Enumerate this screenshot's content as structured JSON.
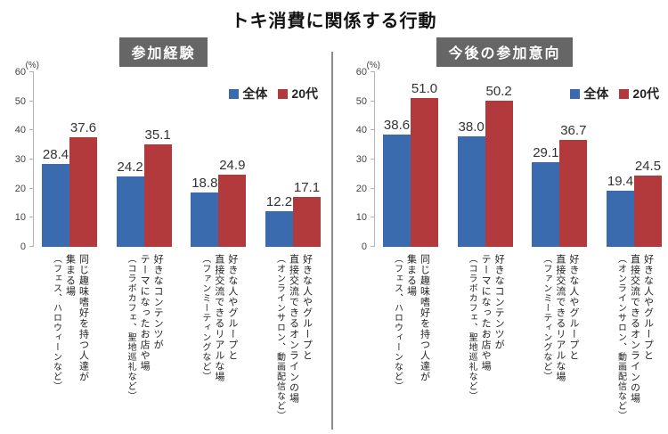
{
  "title": "トキ消費に関係する行動",
  "colors": {
    "series_colors": [
      "#3A6BAE",
      "#B33A3C"
    ],
    "header_bg": "#666666",
    "divider": "#8C8C8C",
    "axis": "#B3B3B3",
    "value_text": "#333333"
  },
  "chart_data": [
    {
      "type": "bar",
      "title": "参加経験",
      "ylabel": "(%)",
      "ylim": [
        0,
        60
      ],
      "yticks": [
        0,
        10,
        20,
        30,
        40,
        50,
        60
      ],
      "grid": false,
      "legend_position": "top-right",
      "categories": [
        [
          "同じ趣味嗜好を持つ人達が",
          "集まる場",
          "（フェス、ハロウィーンなど）"
        ],
        [
          "好きなコンテンツが",
          "テーマになったお店や場",
          "（コラボカフェ、聖地巡礼など）"
        ],
        [
          "好きな人やグループと",
          "直接交流できるリアルな場",
          "（ファンミーティングなど）"
        ],
        [
          "好きな人やグループと",
          "直接交流できるオンラインの場",
          "（オンラインサロン、動画配信など）"
        ]
      ],
      "series": [
        {
          "name": "全体",
          "values": [
            28.4,
            24.2,
            18.8,
            12.2
          ]
        },
        {
          "name": "20代",
          "values": [
            37.6,
            35.1,
            24.9,
            17.1
          ]
        }
      ]
    },
    {
      "type": "bar",
      "title": "今後の参加意向",
      "ylabel": "(%)",
      "ylim": [
        0,
        60
      ],
      "yticks": [
        0,
        10,
        20,
        30,
        40,
        50,
        60
      ],
      "grid": false,
      "legend_position": "top-right",
      "categories": [
        [
          "同じ趣味嗜好を持つ人達が",
          "集まる場",
          "（フェス、ハロウィーンなど）"
        ],
        [
          "好きなコンテンツが",
          "テーマになったお店や場",
          "（コラボカフェ、聖地巡礼など）"
        ],
        [
          "好きな人やグループと",
          "直接交流できるリアルな場",
          "（ファンミーティングなど）"
        ],
        [
          "好きな人やグループと",
          "直接交流できるオンラインの場",
          "（オンラインサロン、動画配信など）"
        ]
      ],
      "series": [
        {
          "name": "全体",
          "values": [
            38.6,
            38.0,
            29.1,
            19.4
          ]
        },
        {
          "name": "20代",
          "values": [
            51.0,
            50.2,
            36.7,
            24.5
          ]
        }
      ]
    }
  ]
}
